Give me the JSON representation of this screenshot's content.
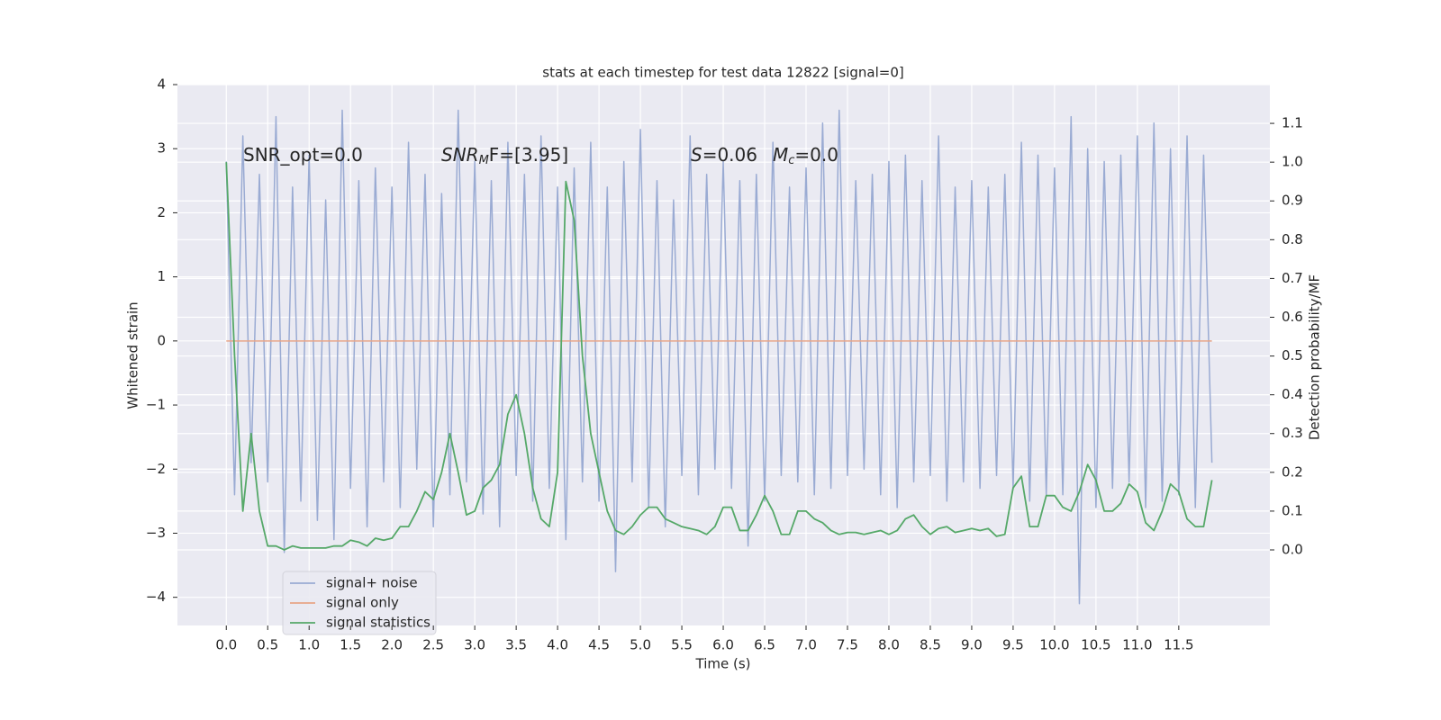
{
  "chart_data": {
    "type": "line",
    "title": "stats at each timestep for test data 12822 [signal=0]",
    "xlabel": "Time (s)",
    "ylabel": "Whitened strain",
    "y2label": "Detection probability/MF",
    "annotations": [
      [
        "SNR_opt=0.0"
      ],
      [
        "SNR",
        "M",
        "F=[3.95]"
      ],
      [
        "S",
        "=0.06"
      ],
      [
        "M",
        "c",
        "=0.0"
      ]
    ],
    "xlim": [
      -0.59,
      12.6
    ],
    "xticks": [
      {
        "value": 0,
        "label": "0.0"
      },
      0.5,
      {
        "value": 1,
        "label": "1.0"
      },
      1.5,
      {
        "value": 2,
        "label": "2.0"
      },
      2.5,
      {
        "value": 3,
        "label": "3.0"
      },
      3.5,
      {
        "value": 4,
        "label": "4.0"
      },
      4.5,
      {
        "value": 5,
        "label": "5.0"
      },
      5.5,
      {
        "value": 6,
        "label": "6.0"
      },
      6.5,
      {
        "value": 7,
        "label": "7.0"
      },
      7.5,
      {
        "value": 8,
        "label": "8.0"
      },
      8.5,
      {
        "value": 9,
        "label": "9.0"
      },
      9.5,
      {
        "value": 10,
        "label": "10.0"
      },
      10.5,
      {
        "value": 11,
        "label": "11.0"
      },
      11.5
    ],
    "ylim": [
      -4.44,
      4
    ],
    "yticks": [
      {
        "value": -4,
        "label": "−4"
      },
      {
        "value": -3,
        "label": "−3"
      },
      {
        "value": -2,
        "label": "−2"
      },
      {
        "value": -1,
        "label": "−1"
      },
      0,
      1,
      2,
      3,
      4
    ],
    "y2lim": [
      -0.195,
      1.2
    ],
    "y2ticks": [
      {
        "value": 0,
        "label": "0.0"
      },
      0.1,
      0.2,
      0.3,
      0.4,
      0.5,
      0.6,
      0.7,
      0.8,
      0.9,
      {
        "value": 1,
        "label": "1.0"
      },
      1.1
    ],
    "grid": true,
    "legend": "lower left",
    "x": [
      0,
      0.1,
      0.2,
      0.3,
      0.4,
      0.5,
      0.6,
      0.7,
      0.8,
      0.9,
      1,
      1.1,
      1.2,
      1.3,
      1.4,
      1.5,
      1.6,
      1.7,
      1.8,
      1.9,
      2,
      2.1,
      2.2,
      2.3,
      2.4,
      2.5,
      2.6,
      2.7,
      2.8,
      2.9,
      3,
      3.1,
      3.2,
      3.3,
      3.4,
      3.5,
      3.6,
      3.7,
      3.8,
      3.9,
      4,
      4.1,
      4.2,
      4.3,
      4.4,
      4.5,
      4.6,
      4.7,
      4.8,
      4.9,
      5,
      5.1,
      5.2,
      5.3,
      5.4,
      5.5,
      5.6,
      5.7,
      5.8,
      5.9,
      6,
      6.1,
      6.2,
      6.3,
      6.4,
      6.5,
      6.6,
      6.7,
      6.8,
      6.9,
      7,
      7.1,
      7.2,
      7.3,
      7.4,
      7.5,
      7.6,
      7.7,
      7.8,
      7.9,
      8,
      8.1,
      8.2,
      8.3,
      8.4,
      8.5,
      8.6,
      8.7,
      8.8,
      8.9,
      9,
      9.1,
      9.2,
      9.3,
      9.4,
      9.5,
      9.6,
      9.7,
      9.8,
      9.9,
      10,
      10.1,
      10.2,
      10.3,
      10.4,
      10.5,
      10.6,
      10.7,
      10.8,
      10.9,
      11,
      11.1,
      11.2,
      11.3,
      11.4,
      11.5,
      11.6,
      11.7,
      11.8,
      11.9
    ],
    "series": [
      {
        "name": "signal+ noise",
        "color": "#9aabd3",
        "values": [
          2.8,
          -2.4,
          3.2,
          -1.9,
          2.6,
          -2.2,
          3.5,
          -3.3,
          2.4,
          -2.5,
          2.9,
          -2.8,
          2.2,
          -3.1,
          3.6,
          -2.3,
          2.5,
          -2.9,
          2.7,
          -2.2,
          2.4,
          -2.6,
          3.1,
          -2.0,
          2.6,
          -2.9,
          2.3,
          -2.4,
          3.6,
          -2.2,
          2.8,
          -2.7,
          2.5,
          -2.9,
          3.1,
          -2.1,
          2.6,
          -2.5,
          3.2,
          -2.3,
          2.4,
          -3.1,
          2.7,
          -2.2,
          3.1,
          -2.5,
          2.4,
          -3.6,
          2.8,
          -2.2,
          3.3,
          -2.6,
          2.5,
          -2.9,
          2.2,
          -2.1,
          3.2,
          -2.4,
          2.6,
          -2.0,
          2.8,
          -2.3,
          2.5,
          -3.2,
          2.6,
          -2.5,
          3.1,
          -2.1,
          2.4,
          -2.2,
          2.7,
          -2.4,
          3.4,
          -2.3,
          3.6,
          -2.1,
          2.5,
          -2.0,
          2.6,
          -2.4,
          2.8,
          -2.6,
          2.9,
          -2.2,
          2.5,
          -2.1,
          3.2,
          -2.5,
          2.4,
          -2.2,
          2.5,
          -2.3,
          2.4,
          -2.1,
          2.6,
          -2.3,
          3.1,
          -2.5,
          2.9,
          -2.4,
          2.7,
          -2.4,
          3.5,
          -4.1,
          3.0,
          -2.6,
          2.8,
          -2.3,
          2.9,
          -2.2,
          3.2,
          -2.6,
          3.4,
          -2.5,
          3.0,
          -2.4,
          3.2,
          -2.6,
          2.9,
          -1.9
        ]
      },
      {
        "name": "signal only",
        "color": "#e8a587",
        "x": [
          0,
          11.9
        ],
        "values": [
          0,
          0
        ]
      },
      {
        "name": "signal statistics",
        "color": "#55a868",
        "axis": "y2",
        "values": [
          1.0,
          0.5,
          0.1,
          0.3,
          0.1,
          0.01,
          0.01,
          0.0,
          0.01,
          0.005,
          0.005,
          0.005,
          0.005,
          0.01,
          0.01,
          0.025,
          0.02,
          0.01,
          0.03,
          0.025,
          0.03,
          0.06,
          0.06,
          0.1,
          0.15,
          0.13,
          0.2,
          0.3,
          0.2,
          0.09,
          0.1,
          0.16,
          0.18,
          0.22,
          0.35,
          0.4,
          0.3,
          0.16,
          0.08,
          0.06,
          0.2,
          0.95,
          0.85,
          0.5,
          0.3,
          0.2,
          0.1,
          0.05,
          0.04,
          0.06,
          0.09,
          0.11,
          0.11,
          0.08,
          0.07,
          0.06,
          0.055,
          0.05,
          0.04,
          0.06,
          0.11,
          0.11,
          0.05,
          0.05,
          0.09,
          0.14,
          0.1,
          0.04,
          0.04,
          0.1,
          0.1,
          0.08,
          0.07,
          0.05,
          0.04,
          0.045,
          0.045,
          0.04,
          0.045,
          0.05,
          0.04,
          0.05,
          0.08,
          0.09,
          0.06,
          0.04,
          0.055,
          0.06,
          0.045,
          0.05,
          0.055,
          0.05,
          0.055,
          0.035,
          0.04,
          0.16,
          0.19,
          0.06,
          0.06,
          0.14,
          0.14,
          0.11,
          0.1,
          0.15,
          0.22,
          0.18,
          0.1,
          0.1,
          0.12,
          0.17,
          0.15,
          0.07,
          0.05,
          0.1,
          0.17,
          0.15,
          0.08,
          0.06,
          0.06,
          0.18
        ]
      }
    ]
  }
}
